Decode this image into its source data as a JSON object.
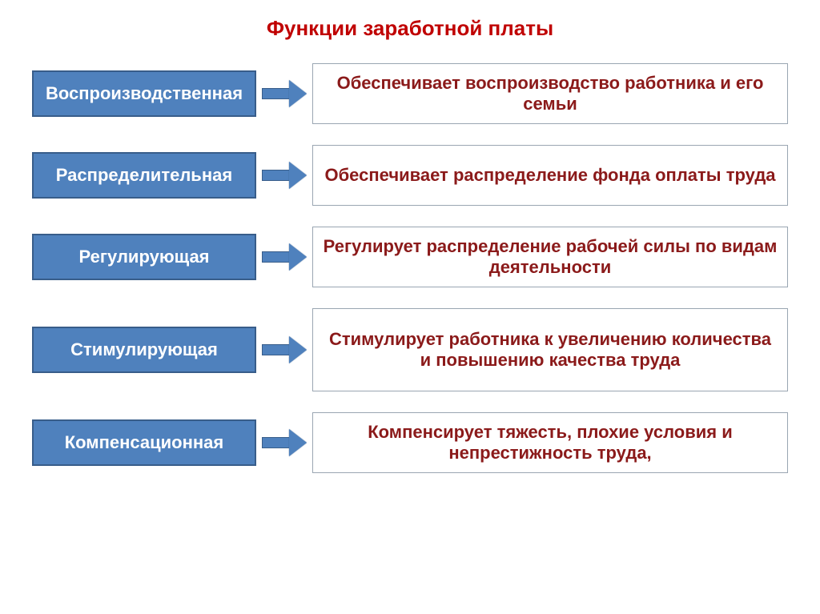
{
  "title": {
    "text": "Функции заработной платы",
    "color": "#c00000",
    "fontsize": 26
  },
  "layout": {
    "left_width": 280,
    "arrow_width": 70,
    "row_gap": 26,
    "left_box": {
      "bg": "#4f81bd",
      "border_color": "#385d8a",
      "border_width": 2,
      "text_color": "#ffffff",
      "fontsize": 22,
      "height": 58
    },
    "right_box": {
      "bg": "#ffffff",
      "border_color": "#9aa6b2",
      "border_width": 1,
      "text_color": "#8b1a1a",
      "fontsize": 22
    },
    "arrow": {
      "stem_color": "#4f81bd",
      "border_color": "#385d8a",
      "stem_length": 34,
      "stem_height": 14,
      "head_length": 22,
      "head_height": 34
    }
  },
  "rows": [
    {
      "left": "Воспроизводственная",
      "right": "Обеспечивает воспроизводство работника и его семьи",
      "right_height": 76
    },
    {
      "left": "Распределительная",
      "right": "Обеспечивает распределение фонда оплаты труда",
      "right_height": 76
    },
    {
      "left": "Регулирующая",
      "right": "Регулирует распределение рабочей силы по видам деятельности",
      "right_height": 76
    },
    {
      "left": "Стимулирующая",
      "right": "Стимулирует работника к увеличению количества и повышению качества труда",
      "right_height": 104
    },
    {
      "left": "Компенсационная",
      "right": "Компенсирует  тяжесть, плохие условия и непрестижность труда,",
      "right_height": 76
    }
  ]
}
